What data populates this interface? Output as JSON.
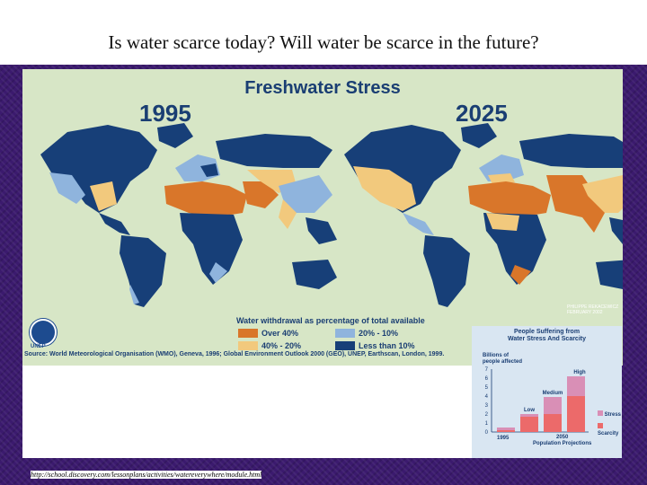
{
  "slide": {
    "title": "Is water scarce today?  Will water be scarce in the future?",
    "url": "http://school.discovery.com/lessonplans/activities/watereverywhere/module.html"
  },
  "map": {
    "title": "Freshwater Stress",
    "year_left": "1995",
    "year_right": "2025",
    "signature": "PHILIPPE REKACEWICZ",
    "date": "FEBRUARY 2002",
    "legend_title": "Water withdrawal as percentage of total available",
    "legend": [
      {
        "label": "Over 40%",
        "color": "#d9762a"
      },
      {
        "label": "40% - 20%",
        "color": "#f2c97d"
      },
      {
        "label": "20% - 10%",
        "color": "#8fb4dd"
      },
      {
        "label": "Less than 10%",
        "color": "#173f78"
      }
    ],
    "logo_text": "UNEP",
    "source": "Source: World Meteorological Organisation (WMO), Geneva, 1996; Global Environment Outlook 2000 (GEO), UNEP, Earthscan, London, 1999."
  },
  "inset": {
    "title_line1": "People Suffering from",
    "title_line2": "Water Stress And Scarcity",
    "ylabel_line1": "Billions of",
    "ylabel_line2": "people affected",
    "yticks": [
      "7",
      "6",
      "5",
      "4",
      "3",
      "2",
      "1",
      "0"
    ],
    "labels": {
      "low": "Low",
      "medium": "Medium",
      "high": "High"
    },
    "x_left": "1995",
    "x_right_line1": "2050",
    "x_right_line2": "Population Projections",
    "legend": [
      {
        "label": "Stress",
        "color": "#d98fb6"
      },
      {
        "label": "Scarcity",
        "color": "#ec6a6a"
      }
    ],
    "chart_data": {
      "type": "bar",
      "categories": [
        "1995",
        "Low",
        "Medium",
        "High"
      ],
      "series": [
        {
          "name": "Scarcity",
          "values": [
            0.2,
            1.7,
            2.0,
            4.0
          ]
        },
        {
          "name": "Stress",
          "values": [
            0.3,
            0.3,
            1.9,
            2.2
          ]
        }
      ],
      "ylim": [
        0,
        7
      ]
    }
  }
}
